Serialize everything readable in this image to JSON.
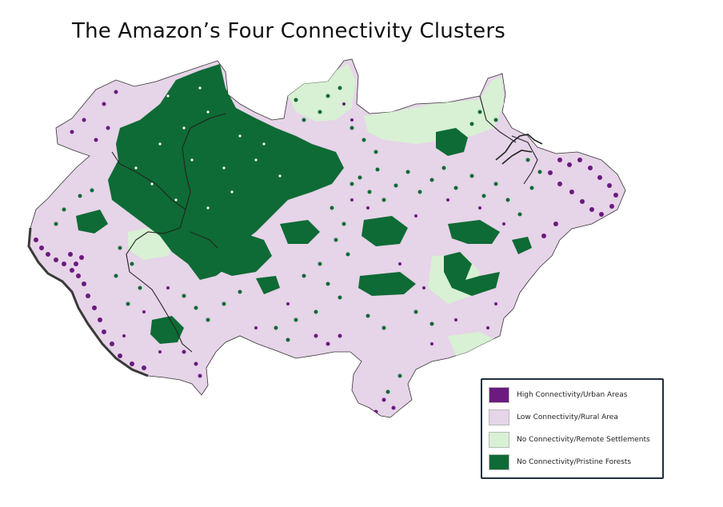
{
  "title": "The Amazon’s Four Connectivity Clusters",
  "colors": {
    "high_connectivity": "#6b1a7f",
    "low_connectivity": "#e6d4e8",
    "remote_settlements": "#d8f0d4",
    "pristine_forests": "#0e6b35",
    "border": "#222222"
  },
  "legend": {
    "items": [
      {
        "label": "High Connectivity/Urban Areas",
        "color": "#6b1a7f"
      },
      {
        "label": "Low Connectivity/Rural Area",
        "color": "#e6d4e8"
      },
      {
        "label": "No Connectivity/Remote Settlements",
        "color": "#d8f0d4"
      },
      {
        "label": "No Connectivity/Pristine Forests",
        "color": "#0e6b35"
      }
    ]
  }
}
